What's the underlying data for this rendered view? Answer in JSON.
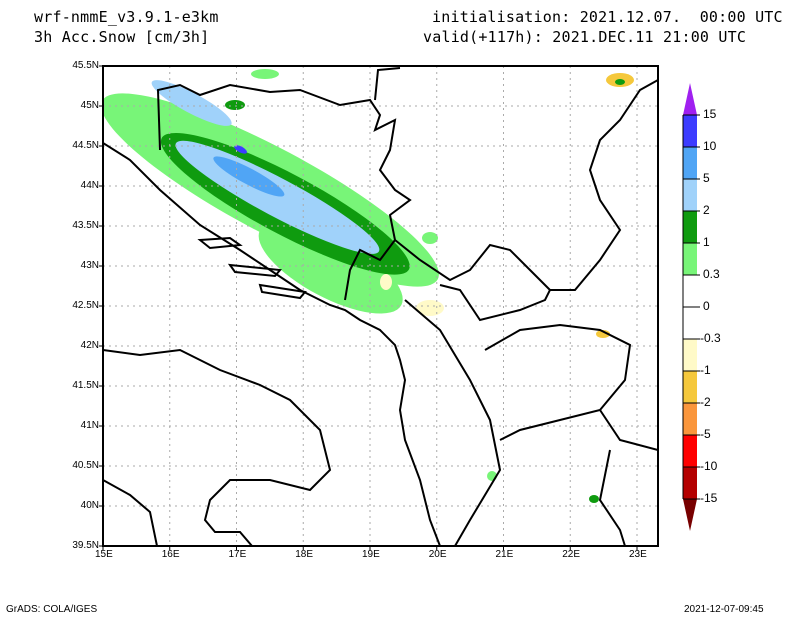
{
  "header": {
    "model": "wrf-nmmE_v3.9.1-e3km",
    "variable": "3h Acc.Snow [cm/3h]",
    "initialisation": "initialisation: 2021.12.07.  00:00 UTC",
    "valid": "valid(+117h): 2021.DEC.11 21:00 UTC"
  },
  "map": {
    "lon_labels": [
      "15E",
      "16E",
      "17E",
      "18E",
      "19E",
      "20E",
      "21E",
      "22E",
      "23E"
    ],
    "lat_labels": [
      "45.5N",
      "45N",
      "44.5N",
      "44N",
      "43.5N",
      "43N",
      "42.5N",
      "42N",
      "41.5N",
      "41N",
      "40.5N",
      "40N",
      "39.5N"
    ]
  },
  "legend": {
    "labels": [
      "15",
      "10",
      "5",
      "2",
      "1",
      "0.3",
      "0",
      "-0.3",
      "-1",
      "-2",
      "-5",
      "-10",
      "-15"
    ],
    "colors": [
      "#a020f0",
      "#3c3cff",
      "#50a5f5",
      "#a0d2fa",
      "#0f9b0f",
      "#78f578",
      "#ffffff",
      "#ffffff",
      "#fffac8",
      "#f5c83c",
      "#fa963c",
      "#ff0000",
      "#b40000",
      "#780000"
    ]
  },
  "footer": {
    "left": "GrADS: COLA/IGES",
    "right": "2021-12-07-09:45"
  }
}
